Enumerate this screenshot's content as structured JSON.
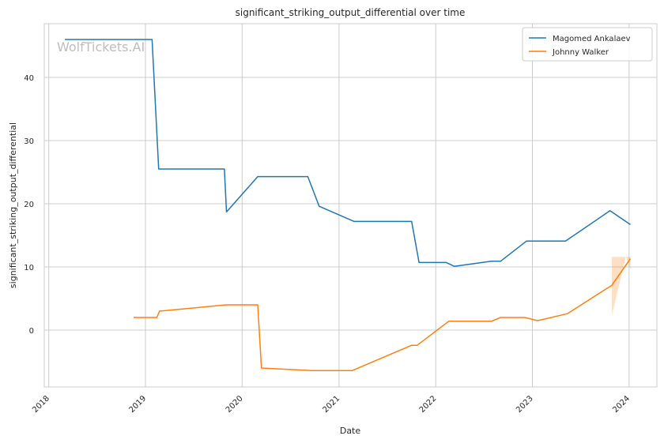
{
  "chart_data": {
    "type": "line",
    "title": "significant_striking_output_differential over time",
    "xlabel": "Date",
    "ylabel": "significant_striking_output_differential",
    "watermark": "WolfTickets.AI",
    "xlim": [
      "2017-12-15",
      "2024-04-15"
    ],
    "ylim": [
      -9,
      48.5
    ],
    "x_ticks": [
      "2018",
      "2019",
      "2020",
      "2021",
      "2022",
      "2023",
      "2024"
    ],
    "y_ticks": [
      0,
      10,
      20,
      30,
      40
    ],
    "grid": true,
    "legend_position": "top-right",
    "series": [
      {
        "name": "Magomed Ankalaev",
        "color": "#1f77b4",
        "points": [
          [
            "2018-03-03",
            46
          ],
          [
            "2019-01-26",
            46
          ],
          [
            "2019-02-20",
            25.5
          ],
          [
            "2019-10-26",
            25.5
          ],
          [
            "2019-11-03",
            18.7
          ],
          [
            "2020-02-29",
            24.3
          ],
          [
            "2020-09-05",
            24.3
          ],
          [
            "2020-10-18",
            19.6
          ],
          [
            "2021-02-27",
            17.2
          ],
          [
            "2021-10-02",
            17.2
          ],
          [
            "2021-10-30",
            10.7
          ],
          [
            "2022-02-10",
            10.7
          ],
          [
            "2022-03-12",
            10.1
          ],
          [
            "2022-07-30",
            10.9
          ],
          [
            "2022-09-03",
            10.9
          ],
          [
            "2022-12-10",
            14.1
          ],
          [
            "2023-05-06",
            14.1
          ],
          [
            "2023-10-21",
            18.9
          ],
          [
            "2024-01-06",
            16.7
          ]
        ]
      },
      {
        "name": "Johnny Walker",
        "color": "#ff7f0e",
        "points": [
          [
            "2018-11-17",
            2.0
          ],
          [
            "2019-02-13",
            2.0
          ],
          [
            "2019-02-23",
            3.0
          ],
          [
            "2019-11-02",
            4.0
          ],
          [
            "2020-02-29",
            4.0
          ],
          [
            "2020-03-14",
            -6.0
          ],
          [
            "2020-09-19",
            -6.4
          ],
          [
            "2021-02-20",
            -6.4
          ],
          [
            "2021-10-02",
            -2.4
          ],
          [
            "2021-10-23",
            -2.4
          ],
          [
            "2022-02-19",
            1.4
          ],
          [
            "2022-07-30",
            1.4
          ],
          [
            "2022-09-03",
            2.0
          ],
          [
            "2022-12-03",
            2.0
          ],
          [
            "2023-01-21",
            1.5
          ],
          [
            "2023-05-13",
            2.6
          ],
          [
            "2023-10-28",
            7.1
          ],
          [
            "2024-01-06",
            11.3
          ]
        ],
        "confidence_band": [
          [
            "2023-10-28",
            2.4,
            11.6
          ],
          [
            "2023-12-20",
            11.6,
            11.6
          ],
          [
            "2024-01-06",
            9.6,
            11.6
          ]
        ]
      }
    ]
  }
}
